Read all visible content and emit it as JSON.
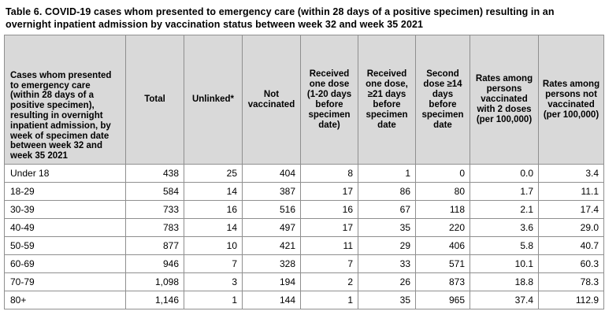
{
  "title": "Table 6. COVID-19 cases whom presented to emergency care (within 28 days of a positive specimen) resulting in an overnight inpatient admission by vaccination status between week 32 and week 35 2021",
  "table": {
    "columns": [
      {
        "key": "cases-by-age",
        "label": "Cases whom presented to emergency care (within 28 days of a positive specimen), resulting in overnight inpatient admission, by week of specimen date between week 32 and week 35 2021"
      },
      {
        "key": "total",
        "label": "Total"
      },
      {
        "key": "unlinked",
        "label": "Unlinked*"
      },
      {
        "key": "not-vaccinated",
        "label": "Not vaccinated"
      },
      {
        "key": "one-dose-1-20-days",
        "label": "Received one dose (1-20 days before specimen date)"
      },
      {
        "key": "one-dose-21plus-days",
        "label": "Received one dose, ≥21 days before specimen date"
      },
      {
        "key": "second-dose-14plus-days",
        "label": "Second dose ≥14 days before specimen date"
      },
      {
        "key": "rate-vaccinated-2-doses",
        "label": "Rates among persons vaccinated with 2 doses (per 100,000)"
      },
      {
        "key": "rate-not-vaccinated",
        "label": "Rates among persons not vaccinated (per 100,000)"
      }
    ],
    "rows": [
      [
        "Under 18",
        "438",
        "25",
        "404",
        "8",
        "1",
        "0",
        "0.0",
        "3.4"
      ],
      [
        "18-29",
        "584",
        "14",
        "387",
        "17",
        "86",
        "80",
        "1.7",
        "11.1"
      ],
      [
        "30-39",
        "733",
        "16",
        "516",
        "16",
        "67",
        "118",
        "2.1",
        "17.4"
      ],
      [
        "40-49",
        "783",
        "14",
        "497",
        "17",
        "35",
        "220",
        "3.6",
        "29.0"
      ],
      [
        "50-59",
        "877",
        "10",
        "421",
        "11",
        "29",
        "406",
        "5.8",
        "40.7"
      ],
      [
        "60-69",
        "946",
        "7",
        "328",
        "7",
        "33",
        "571",
        "10.1",
        "60.3"
      ],
      [
        "70-79",
        "1,098",
        "3",
        "194",
        "2",
        "26",
        "873",
        "18.8",
        "78.3"
      ],
      [
        "80+",
        "1,146",
        "1",
        "144",
        "1",
        "35",
        "965",
        "37.4",
        "112.9"
      ]
    ]
  },
  "colors": {
    "header_bg": "#d9d9d9",
    "border": "#8f8f8f",
    "text": "#000000",
    "background": "#ffffff"
  }
}
